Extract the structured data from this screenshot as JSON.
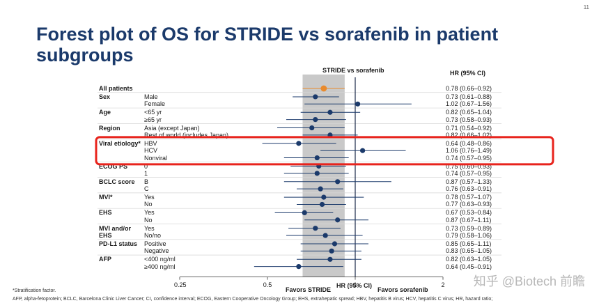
{
  "slide_number": "11",
  "title": "Forest plot of OS for STRIDE vs sorafenib in patient subgroups",
  "footnotes": {
    "stratification": "*Stratification factor.",
    "abbreviations": "AFP, alpha-fetoprotein; BCLC, Barcelona Clinic Liver Cancer; CI, confidence interval; ECOG, Eastern Cooperative Oncology Group; EHS, extrahepatic spread; HBV, hepatitis B virus; HCV, hepatitis C virus; HR, hazard ratio;"
  },
  "watermark": "知乎 @Biotech 前瞻",
  "colors": {
    "highlight": "#e8231c",
    "marker": "#1b3a6b",
    "overall": "#e98a2c",
    "shade": "#bfbfbf"
  },
  "chart_data": {
    "type": "forest",
    "plot_header": "STRIDE vs sorafenib",
    "hr_header": "HR (95% CI)",
    "xlabel": "HR (95% CI)",
    "favors_left": "Favors STRIDE",
    "favors_right": "Favors sorafenib",
    "xscale": "log",
    "xlim": [
      0.25,
      2.2
    ],
    "xticks": [
      0.25,
      0.5,
      1,
      2
    ],
    "xtick_labels": [
      "0.25",
      "0.5",
      "1",
      "2"
    ],
    "overall_ci": [
      0.66,
      0.92
    ],
    "highlighted_group": "Viral etiology*",
    "groups": [
      {
        "label": "All patients",
        "rows": [
          {
            "sub": "",
            "hr": 0.78,
            "lo": 0.66,
            "hi": 0.92,
            "text": "0.78 (0.66–0.92)"
          }
        ]
      },
      {
        "label": "Sex",
        "rows": [
          {
            "sub": "Male",
            "hr": 0.73,
            "lo": 0.61,
            "hi": 0.88,
            "text": "0.73 (0.61–0.88)"
          },
          {
            "sub": "Female",
            "hr": 1.02,
            "lo": 0.67,
            "hi": 1.56,
            "text": "1.02 (0.67–1.56)"
          }
        ]
      },
      {
        "label": "Age",
        "rows": [
          {
            "sub": "<65 yr",
            "hr": 0.82,
            "lo": 0.65,
            "hi": 1.04,
            "text": "0.82 (0.65–1.04)"
          },
          {
            "sub": "≥65 yr",
            "hr": 0.73,
            "lo": 0.58,
            "hi": 0.93,
            "text": "0.73 (0.58–0.93)"
          }
        ]
      },
      {
        "label": "Region",
        "rows": [
          {
            "sub": "Asia (except Japan)",
            "hr": 0.71,
            "lo": 0.54,
            "hi": 0.92,
            "text": "0.71 (0.54–0.92)"
          },
          {
            "sub": "Rest of world (includes Japan)",
            "hr": 0.82,
            "lo": 0.66,
            "hi": 1.02,
            "text": "0.82 (0.66–1.02)"
          }
        ]
      },
      {
        "label": "Viral etiology*",
        "rows": [
          {
            "sub": "HBV",
            "hr": 0.64,
            "lo": 0.48,
            "hi": 0.86,
            "text": "0.64 (0.48–0.86)"
          },
          {
            "sub": "HCV",
            "hr": 1.06,
            "lo": 0.76,
            "hi": 1.49,
            "text": "1.06 (0.76–1.49)"
          },
          {
            "sub": "Nonviral",
            "hr": 0.74,
            "lo": 0.57,
            "hi": 0.95,
            "text": "0.74 (0.57–0.95)"
          }
        ]
      },
      {
        "label": "ECOG PS",
        "rows": [
          {
            "sub": "0",
            "hr": 0.75,
            "lo": 0.6,
            "hi": 0.93,
            "text": "0.75 (0.60–0.93)"
          },
          {
            "sub": "1",
            "hr": 0.74,
            "lo": 0.57,
            "hi": 0.95,
            "text": "0.74 (0.57–0.95)"
          }
        ]
      },
      {
        "label": "BCLC score",
        "rows": [
          {
            "sub": "B",
            "hr": 0.87,
            "lo": 0.57,
            "hi": 1.33,
            "text": "0.87 (0.57–1.33)"
          },
          {
            "sub": "C",
            "hr": 0.76,
            "lo": 0.63,
            "hi": 0.91,
            "text": "0.76 (0.63–0.91)"
          }
        ]
      },
      {
        "label": "MVI*",
        "rows": [
          {
            "sub": "Yes",
            "hr": 0.78,
            "lo": 0.57,
            "hi": 1.07,
            "text": "0.78 (0.57–1.07)"
          },
          {
            "sub": "No",
            "hr": 0.77,
            "lo": 0.63,
            "hi": 0.93,
            "text": "0.77 (0.63–0.93)"
          }
        ]
      },
      {
        "label": "EHS",
        "rows": [
          {
            "sub": "Yes",
            "hr": 0.67,
            "lo": 0.53,
            "hi": 0.84,
            "text": "0.67 (0.53–0.84)"
          },
          {
            "sub": "No",
            "hr": 0.87,
            "lo": 0.67,
            "hi": 1.11,
            "text": "0.87 (0.67–1.11)"
          }
        ]
      },
      {
        "label": "MVI and/or EHS",
        "rows": [
          {
            "sub": "Yes",
            "hr": 0.73,
            "lo": 0.59,
            "hi": 0.89,
            "text": "0.73 (0.59–0.89)"
          },
          {
            "sub": "No/no",
            "hr": 0.79,
            "lo": 0.58,
            "hi": 1.06,
            "text": "0.79 (0.58–1.06)"
          }
        ]
      },
      {
        "label": "PD-L1 status",
        "rows": [
          {
            "sub": "Positive",
            "hr": 0.85,
            "lo": 0.65,
            "hi": 1.11,
            "text": "0.85 (0.65–1.11)"
          },
          {
            "sub": "Negative",
            "hr": 0.83,
            "lo": 0.65,
            "hi": 1.05,
            "text": "0.83 (0.65–1.05)"
          }
        ]
      },
      {
        "label": "AFP",
        "rows": [
          {
            "sub": "<400 ng/ml",
            "hr": 0.82,
            "lo": 0.63,
            "hi": 1.05,
            "text": "0.82 (0.63–1.05)"
          },
          {
            "sub": "≥400 ng/ml",
            "hr": 0.64,
            "lo": 0.45,
            "hi": 0.91,
            "text": "0.64 (0.45–0.91)"
          }
        ]
      }
    ]
  }
}
